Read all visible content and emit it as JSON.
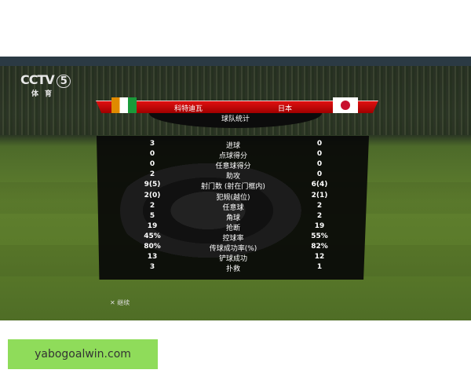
{
  "broadcaster": {
    "logo": "CCTV",
    "channel": "5",
    "subtitle": "体育"
  },
  "header": {
    "home_team": "科特迪瓦",
    "away_team": "日本",
    "home_flag": "cote-divoire-flag",
    "away_flag": "japan-flag",
    "tab": "球队统计"
  },
  "stats": [
    {
      "label": "进球",
      "home": "3",
      "away": "0"
    },
    {
      "label": "点球得分",
      "home": "0",
      "away": "0"
    },
    {
      "label": "任意球得分",
      "home": "0",
      "away": "0"
    },
    {
      "label": "助攻",
      "home": "2",
      "away": "0"
    },
    {
      "label": "射门数 (射在门框内)",
      "home": "9(5)",
      "away": "6(4)"
    },
    {
      "label": "犯规(越位)",
      "home": "2(0)",
      "away": "2(1)"
    },
    {
      "label": "任意球",
      "home": "2",
      "away": "2"
    },
    {
      "label": "角球",
      "home": "5",
      "away": "2"
    },
    {
      "label": "抢断",
      "home": "19",
      "away": "19"
    },
    {
      "label": "控球率",
      "home": "45%",
      "away": "55%"
    },
    {
      "label": "传球成功率(%)",
      "home": "80%",
      "away": "82%"
    },
    {
      "label": "铲球成功",
      "home": "13",
      "away": "12"
    },
    {
      "label": "扑救",
      "home": "3",
      "away": "1"
    }
  ],
  "footer": {
    "button_icon": "x-button-icon",
    "continue_label": "继续"
  },
  "watermark": {
    "text": "yabogoalwin.com",
    "color": "#8fdc5a"
  },
  "colors": {
    "banner": "#d00000",
    "panel": "#080808"
  }
}
